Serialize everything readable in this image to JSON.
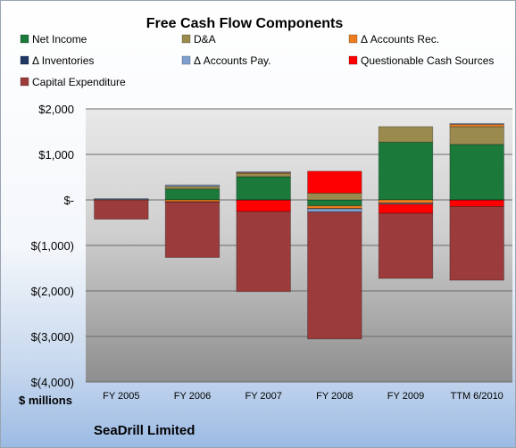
{
  "chart_data": {
    "type": "bar",
    "stacked": true,
    "title": "Free Cash Flow Components",
    "unit_label": "$ millions",
    "company_label": "SeaDrill Limited",
    "categories": [
      "FY 2005",
      "FY 2006",
      "FY 2007",
      "FY 2008",
      "FY 2009",
      "TTM 6/2010"
    ],
    "ylim": [
      -4000,
      2000
    ],
    "yticks": [
      2000,
      1000,
      0,
      -1000,
      -2000,
      -3000,
      -4000
    ],
    "ytick_labels": [
      "$2,000",
      "$1,000",
      "$-",
      "$(1,000)",
      "$(2,000)",
      "$(3,000)",
      "$(4,000)"
    ],
    "legend_position": "top",
    "series": [
      {
        "name": "Net Income",
        "color": "#1b7a3a",
        "values": [
          5,
          240,
          510,
          -130,
          1270,
          1220
        ]
      },
      {
        "name": "D&A",
        "color": "#9a8a4e",
        "values": [
          15,
          60,
          80,
          150,
          340,
          390
        ]
      },
      {
        "name": "Δ Accounts Rec.",
        "color": "#ee7d1f",
        "values": [
          -5,
          -40,
          10,
          -60,
          -70,
          50
        ]
      },
      {
        "name": "Δ Inventories",
        "color": "#1f3864",
        "values": [
          0,
          -5,
          -5,
          -5,
          -5,
          -5
        ]
      },
      {
        "name": "Δ Accounts Pay.",
        "color": "#7f9fcf",
        "values": [
          10,
          30,
          20,
          -70,
          -20,
          20
        ]
      },
      {
        "name": "Questionable Cash Sources",
        "color": "#ff0000",
        "values": [
          0,
          0,
          -250,
          480,
          -200,
          -140
        ]
      },
      {
        "name": "Capital Expenditure",
        "color": "#9c3b3b",
        "values": [
          -420,
          -1220,
          -1760,
          -2790,
          -1430,
          -1620
        ]
      }
    ]
  }
}
